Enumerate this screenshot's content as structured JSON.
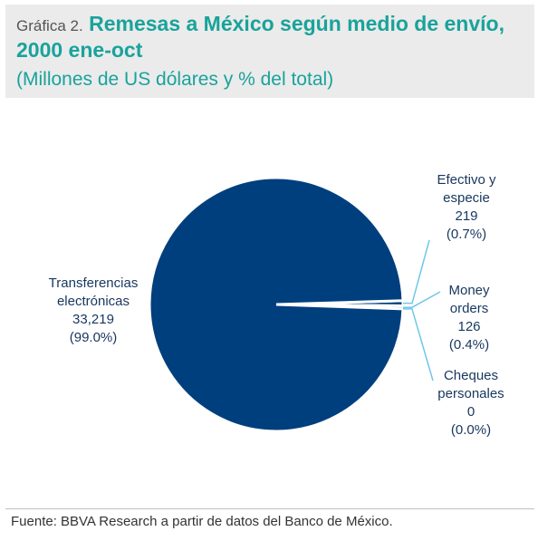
{
  "header": {
    "prefix": "Gráfica 2.",
    "title": "Remesas a México según medio de envío, 2000 ene-oct",
    "subtitle": "(Millones de US dólares y % del total)"
  },
  "chart_data": {
    "type": "pie",
    "title": "Remesas a México según medio de envío, 2000 ene-oct",
    "subtitle": "(Millones de US dólares y % del total)",
    "slices": [
      {
        "name_lines": [
          "Transferencias",
          "electrónicas"
        ],
        "value": 33219,
        "value_label": "33,219",
        "percent_label": "(99.0%)",
        "color": "#003f7d"
      },
      {
        "name_lines": [
          "Efectivo y",
          "especie"
        ],
        "value": 219,
        "value_label": "219",
        "percent_label": "(0.7%)",
        "color": "#003f7d"
      },
      {
        "name_lines": [
          "Money",
          "orders"
        ],
        "value": 126,
        "value_label": "126",
        "percent_label": "(0.4%)",
        "color": "#003f7d"
      },
      {
        "name_lines": [
          "Cheques",
          "personales"
        ],
        "value": 0,
        "value_label": "0",
        "percent_label": "(0.0%)",
        "color": "#003f7d"
      }
    ],
    "leader_line_color": "#6fc7e8",
    "legend": "none"
  },
  "footer": {
    "source": "Fuente: BBVA Research a partir de datos del Banco de México."
  }
}
